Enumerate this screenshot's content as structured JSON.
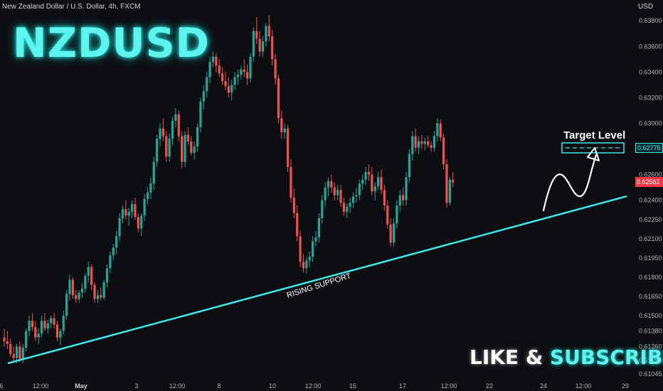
{
  "header": {
    "instrument": "New Zealand Dollar / U.S. Dollar, 4h, FXCM",
    "title": "NZDUSD",
    "currency_unit": "USD"
  },
  "annotations": {
    "support_label": "RISING SUPPORT",
    "target_label": "Target Level",
    "cta_like": "LIKE",
    "cta_amp": "&",
    "cta_subscribe": "SUBSCRIBE"
  },
  "price_tags": {
    "target_value": "0.62775",
    "current_value": "0.62562"
  },
  "colors": {
    "background": "#0d0e12",
    "up_candle": "#26a69a",
    "down_candle": "#ef5350",
    "support_line": "#3ee8ea",
    "accent_cyan": "#5ff3ee"
  },
  "chart_data": {
    "type": "candlestick",
    "title": "NZDUSD",
    "x_tick_labels": [
      "6",
      "12:00",
      "May",
      "3",
      "12:00",
      "8",
      "10",
      "12:00",
      "15",
      "17",
      "12:00",
      "22",
      "24",
      "12:00",
      "29"
    ],
    "y_tick_labels": [
      "0.63800",
      "0.63600",
      "0.63400",
      "0.63200",
      "0.63000",
      "0.62800",
      "0.62600",
      "0.62400",
      "0.62250",
      "0.62100",
      "0.61950",
      "0.61800",
      "0.61650",
      "0.61500",
      "0.61380",
      "0.61260",
      "0.61150",
      "0.61045"
    ],
    "y_ticks": [
      0.638,
      0.636,
      0.634,
      0.632,
      0.63,
      0.628,
      0.626,
      0.624,
      0.6225,
      0.621,
      0.6195,
      0.618,
      0.6165,
      0.615,
      0.6138,
      0.6126,
      0.6115,
      0.61045
    ],
    "ylim": [
      0.6104,
      0.6384
    ],
    "grid": false,
    "price_scale_position": "right",
    "current_price": 0.62562,
    "target_level": 0.62775,
    "support_line": {
      "start": {
        "bar": 1,
        "price": 0.6113
      },
      "end": {
        "bar": 175,
        "price": 0.6243
      }
    },
    "ohlc": [
      [
        0.6133,
        0.614,
        0.6126,
        0.613
      ],
      [
        0.613,
        0.6138,
        0.6124,
        0.6128
      ],
      [
        0.6128,
        0.6132,
        0.6118,
        0.612
      ],
      [
        0.612,
        0.6126,
        0.6114,
        0.6117
      ],
      [
        0.6117,
        0.6128,
        0.6113,
        0.6126
      ],
      [
        0.6126,
        0.613,
        0.6114,
        0.6116
      ],
      [
        0.6116,
        0.6128,
        0.6113,
        0.6125
      ],
      [
        0.6125,
        0.614,
        0.6122,
        0.6138
      ],
      [
        0.6138,
        0.615,
        0.6134,
        0.6146
      ],
      [
        0.6146,
        0.6152,
        0.6138,
        0.6141
      ],
      [
        0.6141,
        0.6146,
        0.613,
        0.6133
      ],
      [
        0.6133,
        0.614,
        0.6128,
        0.6136
      ],
      [
        0.6136,
        0.615,
        0.6133,
        0.6146
      ],
      [
        0.6146,
        0.6152,
        0.6138,
        0.614
      ],
      [
        0.614,
        0.6147,
        0.6136,
        0.6144
      ],
      [
        0.6144,
        0.615,
        0.614,
        0.6148
      ],
      [
        0.6148,
        0.6152,
        0.614,
        0.6143
      ],
      [
        0.6143,
        0.6146,
        0.613,
        0.6133
      ],
      [
        0.6133,
        0.614,
        0.6127,
        0.6138
      ],
      [
        0.6138,
        0.6154,
        0.6135,
        0.615
      ],
      [
        0.615,
        0.617,
        0.6147,
        0.6167
      ],
      [
        0.6167,
        0.6182,
        0.6162,
        0.6178
      ],
      [
        0.6178,
        0.618,
        0.6163,
        0.6166
      ],
      [
        0.6166,
        0.617,
        0.616,
        0.6163
      ],
      [
        0.6163,
        0.617,
        0.616,
        0.6168
      ],
      [
        0.6168,
        0.6175,
        0.6164,
        0.6171
      ],
      [
        0.6171,
        0.6183,
        0.6168,
        0.6181
      ],
      [
        0.6181,
        0.6192,
        0.6176,
        0.6188
      ],
      [
        0.6188,
        0.619,
        0.617,
        0.6174
      ],
      [
        0.6174,
        0.6176,
        0.616,
        0.6163
      ],
      [
        0.6163,
        0.617,
        0.616,
        0.6166
      ],
      [
        0.6166,
        0.6172,
        0.6162,
        0.6164
      ],
      [
        0.6164,
        0.6178,
        0.6162,
        0.6176
      ],
      [
        0.6176,
        0.619,
        0.6172,
        0.6187
      ],
      [
        0.6187,
        0.62,
        0.6183,
        0.6197
      ],
      [
        0.6197,
        0.6206,
        0.6193,
        0.6203
      ],
      [
        0.6203,
        0.6216,
        0.6198,
        0.6212
      ],
      [
        0.6212,
        0.623,
        0.6208,
        0.6226
      ],
      [
        0.6226,
        0.6236,
        0.6222,
        0.6233
      ],
      [
        0.6233,
        0.624,
        0.6225,
        0.6228
      ],
      [
        0.6228,
        0.6234,
        0.622,
        0.6231
      ],
      [
        0.6231,
        0.624,
        0.6226,
        0.6237
      ],
      [
        0.6237,
        0.6242,
        0.6225,
        0.6227
      ],
      [
        0.6227,
        0.623,
        0.6215,
        0.6218
      ],
      [
        0.6218,
        0.623,
        0.6212,
        0.6228
      ],
      [
        0.6228,
        0.6245,
        0.6224,
        0.6241
      ],
      [
        0.6241,
        0.625,
        0.6237,
        0.6246
      ],
      [
        0.6246,
        0.6258,
        0.6241,
        0.6253
      ],
      [
        0.6253,
        0.6274,
        0.6248,
        0.627
      ],
      [
        0.627,
        0.6291,
        0.6266,
        0.6288
      ],
      [
        0.6288,
        0.63,
        0.6282,
        0.6296
      ],
      [
        0.6296,
        0.6304,
        0.6286,
        0.629
      ],
      [
        0.629,
        0.6294,
        0.627,
        0.6274
      ],
      [
        0.6274,
        0.6292,
        0.627,
        0.6288
      ],
      [
        0.6288,
        0.6305,
        0.6283,
        0.6302
      ],
      [
        0.6302,
        0.6312,
        0.6297,
        0.6307
      ],
      [
        0.6307,
        0.631,
        0.6286,
        0.629
      ],
      [
        0.629,
        0.6294,
        0.6265,
        0.627
      ],
      [
        0.627,
        0.6294,
        0.6266,
        0.6291
      ],
      [
        0.6291,
        0.6297,
        0.6283,
        0.6286
      ],
      [
        0.6286,
        0.629,
        0.6275,
        0.6277
      ],
      [
        0.6277,
        0.6286,
        0.6272,
        0.6282
      ],
      [
        0.6282,
        0.63,
        0.6278,
        0.6297
      ],
      [
        0.6297,
        0.632,
        0.6293,
        0.6317
      ],
      [
        0.6317,
        0.633,
        0.6311,
        0.6325
      ],
      [
        0.6325,
        0.634,
        0.632,
        0.6336
      ],
      [
        0.6336,
        0.6352,
        0.6331,
        0.6348
      ],
      [
        0.6348,
        0.6356,
        0.6344,
        0.6352
      ],
      [
        0.6352,
        0.6355,
        0.634,
        0.6345
      ],
      [
        0.6345,
        0.635,
        0.6336,
        0.6339
      ],
      [
        0.6339,
        0.6344,
        0.633,
        0.6333
      ],
      [
        0.6333,
        0.634,
        0.6326,
        0.6329
      ],
      [
        0.6329,
        0.6336,
        0.632,
        0.6324
      ],
      [
        0.6324,
        0.6334,
        0.6318,
        0.633
      ],
      [
        0.633,
        0.634,
        0.6326,
        0.6336
      ],
      [
        0.6336,
        0.6342,
        0.633,
        0.6338
      ],
      [
        0.6338,
        0.6345,
        0.6334,
        0.6342
      ],
      [
        0.6342,
        0.635,
        0.6336,
        0.634
      ],
      [
        0.634,
        0.6346,
        0.633,
        0.6335
      ],
      [
        0.6335,
        0.6355,
        0.6332,
        0.6352
      ],
      [
        0.6352,
        0.6375,
        0.6348,
        0.6372
      ],
      [
        0.6372,
        0.6383,
        0.6362,
        0.6366
      ],
      [
        0.6366,
        0.6372,
        0.6352,
        0.6356
      ],
      [
        0.6356,
        0.6368,
        0.6352,
        0.6364
      ],
      [
        0.6364,
        0.6378,
        0.636,
        0.6376
      ],
      [
        0.6376,
        0.6384,
        0.6364,
        0.6368
      ],
      [
        0.6368,
        0.6373,
        0.6345,
        0.635
      ],
      [
        0.635,
        0.6354,
        0.633,
        0.6335
      ],
      [
        0.6335,
        0.6338,
        0.63,
        0.6304
      ],
      [
        0.6304,
        0.631,
        0.6288,
        0.6293
      ],
      [
        0.6293,
        0.63,
        0.6288,
        0.6296
      ],
      [
        0.6296,
        0.6299,
        0.6262,
        0.6266
      ],
      [
        0.6266,
        0.6272,
        0.6238,
        0.6242
      ],
      [
        0.6242,
        0.6249,
        0.6226,
        0.623
      ],
      [
        0.623,
        0.6236,
        0.6208,
        0.6212
      ],
      [
        0.6212,
        0.6216,
        0.6188,
        0.6192
      ],
      [
        0.6192,
        0.6198,
        0.6184,
        0.6187
      ],
      [
        0.6187,
        0.6196,
        0.6183,
        0.6193
      ],
      [
        0.6193,
        0.62,
        0.6188,
        0.6196
      ],
      [
        0.6196,
        0.6212,
        0.6192,
        0.6208
      ],
      [
        0.6208,
        0.6216,
        0.6204,
        0.6211
      ],
      [
        0.6211,
        0.623,
        0.6207,
        0.6226
      ],
      [
        0.6226,
        0.6244,
        0.6222,
        0.624
      ],
      [
        0.624,
        0.6254,
        0.6235,
        0.625
      ],
      [
        0.625,
        0.6258,
        0.6243,
        0.6255
      ],
      [
        0.6255,
        0.626,
        0.6246,
        0.625
      ],
      [
        0.625,
        0.6254,
        0.624,
        0.6244
      ],
      [
        0.6244,
        0.6252,
        0.624,
        0.6248
      ],
      [
        0.6248,
        0.6252,
        0.6235,
        0.6238
      ],
      [
        0.6238,
        0.6242,
        0.6228,
        0.6231
      ],
      [
        0.6231,
        0.6238,
        0.6226,
        0.6235
      ],
      [
        0.6235,
        0.6242,
        0.623,
        0.6238
      ],
      [
        0.6238,
        0.6246,
        0.6234,
        0.6243
      ],
      [
        0.6243,
        0.625,
        0.6238,
        0.6244
      ],
      [
        0.6244,
        0.6256,
        0.624,
        0.6253
      ],
      [
        0.6253,
        0.626,
        0.6248,
        0.6256
      ],
      [
        0.6256,
        0.6266,
        0.6252,
        0.6262
      ],
      [
        0.6262,
        0.6268,
        0.6255,
        0.626
      ],
      [
        0.626,
        0.6266,
        0.6244,
        0.6247
      ],
      [
        0.6247,
        0.6254,
        0.624,
        0.6251
      ],
      [
        0.6251,
        0.6262,
        0.6248,
        0.6258
      ],
      [
        0.6258,
        0.6264,
        0.6245,
        0.6248
      ],
      [
        0.6248,
        0.6252,
        0.6232,
        0.6236
      ],
      [
        0.6236,
        0.624,
        0.6218,
        0.6221
      ],
      [
        0.6221,
        0.6226,
        0.6204,
        0.6207
      ],
      [
        0.6207,
        0.6226,
        0.6204,
        0.6222
      ],
      [
        0.6222,
        0.624,
        0.6218,
        0.6236
      ],
      [
        0.6236,
        0.6248,
        0.6231,
        0.6244
      ],
      [
        0.6244,
        0.625,
        0.6236,
        0.624
      ],
      [
        0.624,
        0.6262,
        0.6236,
        0.6258
      ],
      [
        0.6258,
        0.628,
        0.6254,
        0.6276
      ],
      [
        0.6276,
        0.6294,
        0.6271,
        0.629
      ],
      [
        0.629,
        0.6296,
        0.6278,
        0.6281
      ],
      [
        0.6281,
        0.629,
        0.6276,
        0.6286
      ],
      [
        0.6286,
        0.6291,
        0.628,
        0.6284
      ],
      [
        0.6284,
        0.6289,
        0.6279,
        0.6286
      ],
      [
        0.6286,
        0.629,
        0.6281,
        0.6283
      ],
      [
        0.6283,
        0.6286,
        0.6278,
        0.6281
      ],
      [
        0.6281,
        0.6294,
        0.6278,
        0.629
      ],
      [
        0.629,
        0.6304,
        0.6286,
        0.63
      ],
      [
        0.63,
        0.6303,
        0.6286,
        0.6289
      ],
      [
        0.6289,
        0.6292,
        0.6264,
        0.6268
      ],
      [
        0.6268,
        0.6272,
        0.6234,
        0.6238
      ],
      [
        0.6238,
        0.6258,
        0.6236,
        0.6256
      ],
      [
        0.6256,
        0.6262,
        0.625,
        0.6254
      ]
    ]
  }
}
